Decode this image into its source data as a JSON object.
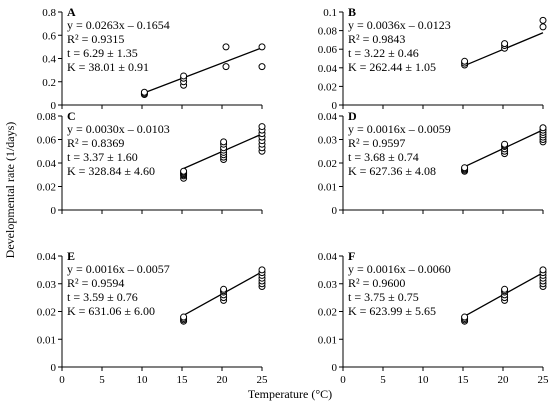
{
  "figure": {
    "ylabel": "Developmental rate (1/days)",
    "xlabel": "Temperature (°C)"
  },
  "chart_data": [
    {
      "type": "scatter",
      "panel": "A",
      "equation": "y = 0.0263x – 0.1654",
      "r2": "R² = 0.9315",
      "t": "t = 6.29 ± 1.35",
      "K": "K = 38.01 ± 0.91",
      "slope": 0.0263,
      "intercept": -0.1654,
      "xlim": [
        0,
        25
      ],
      "xticks": [
        0,
        5,
        10,
        15,
        20,
        25
      ],
      "ylim": [
        0,
        0.8
      ],
      "yticks": [
        0,
        0.2,
        0.4,
        0.6,
        0.8
      ],
      "yticklabels": [
        "0",
        "0.2",
        "0.4",
        "0.6",
        "0.8"
      ],
      "x": [
        10.3,
        10.3,
        10.3,
        15.2,
        15.2,
        15.2,
        15.2,
        20.5,
        20.5,
        25,
        25
      ],
      "y": [
        0.09,
        0.1,
        0.11,
        0.17,
        0.2,
        0.23,
        0.25,
        0.33,
        0.5,
        0.33,
        0.5
      ]
    },
    {
      "type": "scatter",
      "panel": "B",
      "equation": "y = 0.0036x – 0.0123",
      "r2": "R² = 0.9843",
      "t": "t = 3.22 ± 0.46",
      "K": "K = 262.44 ± 1.05",
      "slope": 0.0036,
      "intercept": -0.0123,
      "xlim": [
        0,
        25
      ],
      "xticks": [
        0,
        5,
        10,
        15,
        20,
        25
      ],
      "ylim": [
        0,
        0.1
      ],
      "yticks": [
        0,
        0.02,
        0.04,
        0.06,
        0.08,
        0.1
      ],
      "yticklabels": [
        "0",
        "0.02",
        "0.04",
        "0.06",
        "0.08",
        "0.1"
      ],
      "x": [
        15.2,
        15.2,
        15.2,
        20.2,
        20.2,
        20.2,
        25,
        25
      ],
      "y": [
        0.043,
        0.045,
        0.047,
        0.061,
        0.064,
        0.066,
        0.084,
        0.091
      ]
    },
    {
      "type": "scatter",
      "panel": "C",
      "equation": "y = 0.0030x – 0.0103",
      "r2": "R² = 0.8369",
      "t": "t = 3.37 ± 1.60",
      "K": "K = 328.84 ± 4.60",
      "slope": 0.003,
      "intercept": -0.0103,
      "xlim": [
        0,
        25
      ],
      "xticks": [
        0,
        5,
        10,
        15,
        20,
        25
      ],
      "ylim": [
        0,
        0.08
      ],
      "yticks": [
        0,
        0.02,
        0.04,
        0.06,
        0.08
      ],
      "yticklabels": [
        "0",
        "0.02",
        "0.04",
        "0.06",
        "0.08"
      ],
      "x": [
        15.2,
        15.2,
        15.2,
        15.2,
        15.2,
        15.2,
        20.2,
        20.2,
        20.2,
        20.2,
        20.2,
        20.2,
        20.2,
        20.2,
        25,
        25,
        25,
        25,
        25,
        25,
        25,
        25
      ],
      "y": [
        0.027,
        0.029,
        0.03,
        0.031,
        0.032,
        0.033,
        0.043,
        0.045,
        0.047,
        0.049,
        0.051,
        0.053,
        0.056,
        0.058,
        0.05,
        0.053,
        0.056,
        0.059,
        0.062,
        0.065,
        0.068,
        0.071
      ]
    },
    {
      "type": "scatter",
      "panel": "D",
      "equation": "y = 0.0016x – 0.0059",
      "r2": "R² = 0.9597",
      "t": "t = 3.68 ± 0.74",
      "K": "K = 627.36 ± 4.08",
      "slope": 0.0016,
      "intercept": -0.0059,
      "xlim": [
        0,
        25
      ],
      "xticks": [
        0,
        5,
        10,
        15,
        20,
        25
      ],
      "ylim": [
        0,
        0.04
      ],
      "yticks": [
        0,
        0.01,
        0.02,
        0.03,
        0.04
      ],
      "yticklabels": [
        "0",
        "0.01",
        "0.02",
        "0.03",
        "0.04"
      ],
      "x": [
        15.2,
        15.2,
        15.2,
        15.2,
        20.2,
        20.2,
        20.2,
        20.2,
        20.2,
        20.2,
        25,
        25,
        25,
        25,
        25,
        25,
        25
      ],
      "y": [
        0.0165,
        0.017,
        0.0175,
        0.018,
        0.024,
        0.025,
        0.026,
        0.027,
        0.0275,
        0.028,
        0.029,
        0.03,
        0.031,
        0.032,
        0.033,
        0.034,
        0.035
      ]
    },
    {
      "type": "scatter",
      "panel": "E",
      "equation": "y = 0.0016x – 0.0057",
      "r2": "R² = 0.9594",
      "t": "t = 3.59 ± 0.76",
      "K": "K = 631.06 ± 6.00",
      "slope": 0.0016,
      "intercept": -0.0057,
      "xlim": [
        0,
        25
      ],
      "xticks": [
        0,
        5,
        10,
        15,
        20,
        25
      ],
      "ylim": [
        0,
        0.04
      ],
      "yticks": [
        0,
        0.01,
        0.02,
        0.03,
        0.04
      ],
      "yticklabels": [
        "0",
        "0.01",
        "0.02",
        "0.03",
        "0.04"
      ],
      "x": [
        15.2,
        15.2,
        15.2,
        15.2,
        20.2,
        20.2,
        20.2,
        20.2,
        20.2,
        20.2,
        25,
        25,
        25,
        25,
        25,
        25,
        25
      ],
      "y": [
        0.0165,
        0.017,
        0.0175,
        0.018,
        0.024,
        0.025,
        0.026,
        0.027,
        0.0275,
        0.028,
        0.029,
        0.03,
        0.031,
        0.032,
        0.033,
        0.034,
        0.035
      ]
    },
    {
      "type": "scatter",
      "panel": "F",
      "equation": "y = 0.0016x – 0.0060",
      "r2": "R² = 0.9600",
      "t": "t = 3.75 ± 0.75",
      "K": "K = 623.99 ± 5.65",
      "slope": 0.0016,
      "intercept": -0.006,
      "xlim": [
        0,
        25
      ],
      "xticks": [
        0,
        5,
        10,
        15,
        20,
        25
      ],
      "ylim": [
        0,
        0.04
      ],
      "yticks": [
        0,
        0.01,
        0.02,
        0.03,
        0.04
      ],
      "yticklabels": [
        "0",
        "0.01",
        "0.02",
        "0.03",
        "0.04"
      ],
      "x": [
        15.2,
        15.2,
        15.2,
        15.2,
        20.2,
        20.2,
        20.2,
        20.2,
        20.2,
        20.2,
        25,
        25,
        25,
        25,
        25,
        25,
        25
      ],
      "y": [
        0.0165,
        0.017,
        0.0175,
        0.018,
        0.024,
        0.025,
        0.026,
        0.027,
        0.0275,
        0.028,
        0.029,
        0.03,
        0.031,
        0.032,
        0.033,
        0.034,
        0.035
      ]
    }
  ]
}
